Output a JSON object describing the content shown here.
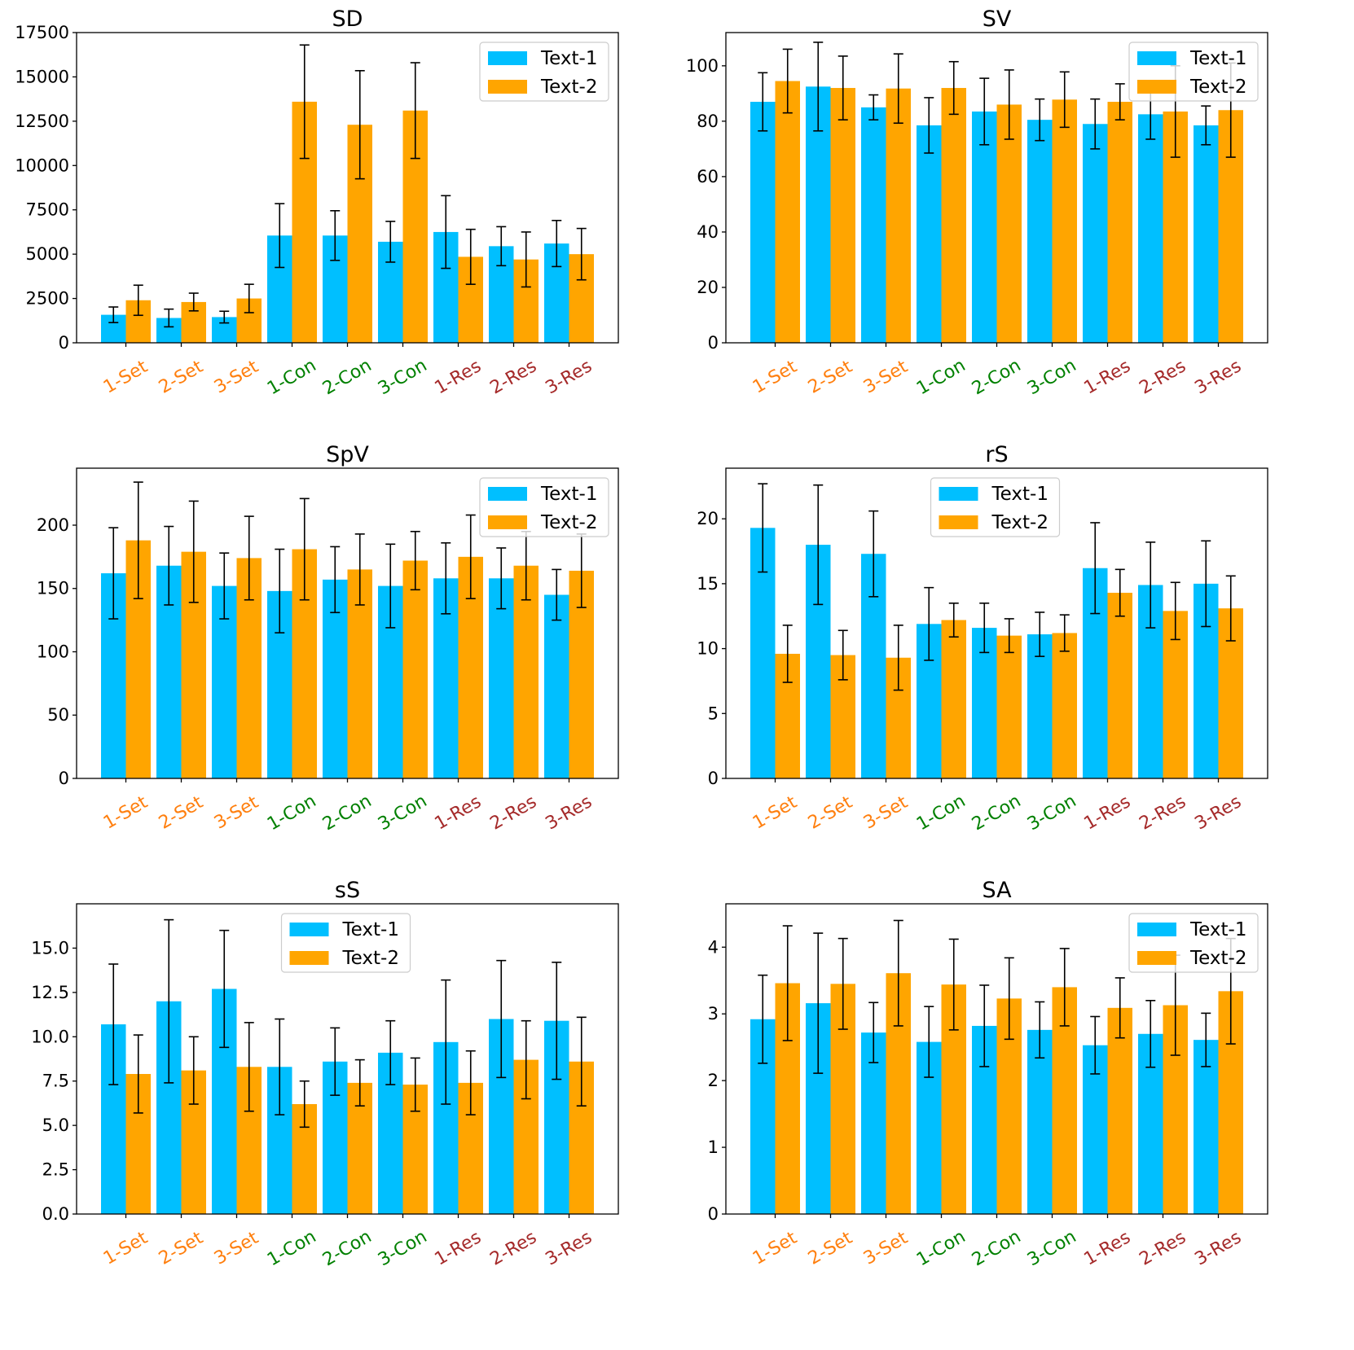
{
  "chart_data": [
    {
      "type": "bar",
      "title": "SD",
      "categories": [
        "1-Set",
        "2-Set",
        "3-Set",
        "1-Con",
        "2-Con",
        "3-Con",
        "1-Res",
        "2-Res",
        "3-Res"
      ],
      "series": [
        {
          "name": "Text-1",
          "values": [
            1580,
            1400,
            1450,
            6050,
            6050,
            5700,
            6250,
            5450,
            5600
          ],
          "errors": [
            440,
            500,
            330,
            1800,
            1400,
            1150,
            2050,
            1100,
            1300
          ]
        },
        {
          "name": "Text-2",
          "values": [
            2400,
            2300,
            2500,
            13600,
            12300,
            13100,
            4850,
            4700,
            5000
          ],
          "errors": [
            850,
            500,
            800,
            3200,
            3050,
            2700,
            1550,
            1550,
            1450
          ]
        }
      ],
      "ylim": [
        0,
        17500
      ],
      "yticks": [
        0,
        2500,
        5000,
        7500,
        10000,
        12500,
        15000,
        17500
      ],
      "legend": "top-right"
    },
    {
      "type": "bar",
      "title": "SV",
      "categories": [
        "1-Set",
        "2-Set",
        "3-Set",
        "1-Con",
        "2-Con",
        "3-Con",
        "1-Res",
        "2-Res",
        "3-Res"
      ],
      "series": [
        {
          "name": "Text-1",
          "values": [
            87,
            92.5,
            85,
            78.5,
            83.5,
            80.5,
            79,
            82.5,
            78.5
          ],
          "errors": [
            10.5,
            16,
            4.5,
            10,
            12,
            7.5,
            9,
            9,
            7
          ]
        },
        {
          "name": "Text-2",
          "values": [
            94.5,
            92,
            91.8,
            92,
            86,
            87.8,
            87,
            83.5,
            84
          ],
          "errors": [
            11.5,
            11.5,
            12.5,
            9.5,
            12.5,
            10,
            6.5,
            16.5,
            17
          ]
        }
      ],
      "ylim": [
        0,
        112
      ],
      "yticks": [
        0,
        20,
        40,
        60,
        80,
        100
      ],
      "legend": "top-right"
    },
    {
      "type": "bar",
      "title": "SpV",
      "categories": [
        "1-Set",
        "2-Set",
        "3-Set",
        "1-Con",
        "2-Con",
        "3-Con",
        "1-Res",
        "2-Res",
        "3-Res"
      ],
      "series": [
        {
          "name": "Text-1",
          "values": [
            162,
            168,
            152,
            148,
            157,
            152,
            158,
            158,
            145
          ],
          "errors": [
            36,
            31,
            26,
            33,
            26,
            33,
            28,
            24,
            20
          ]
        },
        {
          "name": "Text-2",
          "values": [
            188,
            179,
            174,
            181,
            165,
            172,
            175,
            168,
            164
          ],
          "errors": [
            46,
            40,
            33,
            40,
            28,
            23,
            33,
            27,
            29
          ]
        }
      ],
      "ylim": [
        0,
        245
      ],
      "yticks": [
        0,
        50,
        100,
        150,
        200
      ],
      "legend": "top-right"
    },
    {
      "type": "bar",
      "title": "rS",
      "categories": [
        "1-Set",
        "2-Set",
        "3-Set",
        "1-Con",
        "2-Con",
        "3-Con",
        "1-Res",
        "2-Res",
        "3-Res"
      ],
      "series": [
        {
          "name": "Text-1",
          "values": [
            19.3,
            18,
            17.3,
            11.9,
            11.6,
            11.1,
            16.2,
            14.9,
            15
          ],
          "errors": [
            3.4,
            4.6,
            3.3,
            2.8,
            1.9,
            1.7,
            3.5,
            3.3,
            3.3
          ]
        },
        {
          "name": "Text-2",
          "values": [
            9.6,
            9.5,
            9.3,
            12.2,
            11,
            11.2,
            14.3,
            12.9,
            13.1
          ],
          "errors": [
            2.2,
            1.9,
            2.5,
            1.3,
            1.3,
            1.4,
            1.8,
            2.2,
            2.5
          ]
        }
      ],
      "ylim": [
        0,
        23.9
      ],
      "yticks": [
        0,
        5,
        10,
        15,
        20
      ],
      "legend": "top-center"
    },
    {
      "type": "bar",
      "title": "sS",
      "categories": [
        "1-Set",
        "2-Set",
        "3-Set",
        "1-Con",
        "2-Con",
        "3-Con",
        "1-Res",
        "2-Res",
        "3-Res"
      ],
      "series": [
        {
          "name": "Text-1",
          "values": [
            10.7,
            12,
            12.7,
            8.3,
            8.6,
            9.1,
            9.7,
            11,
            10.9
          ],
          "errors": [
            3.4,
            4.6,
            3.3,
            2.7,
            1.9,
            1.8,
            3.5,
            3.3,
            3.3
          ]
        },
        {
          "name": "Text-2",
          "values": [
            7.9,
            8.1,
            8.3,
            6.2,
            7.4,
            7.3,
            7.4,
            8.7,
            8.6
          ],
          "errors": [
            2.2,
            1.9,
            2.5,
            1.3,
            1.3,
            1.5,
            1.8,
            2.2,
            2.5
          ]
        }
      ],
      "ylim": [
        0,
        17.5
      ],
      "yticks": [
        0,
        2.5,
        5,
        7.5,
        10,
        12.5,
        15
      ],
      "legend": "top-center"
    },
    {
      "type": "bar",
      "title": "SA",
      "categories": [
        "1-Set",
        "2-Set",
        "3-Set",
        "1-Con",
        "2-Con",
        "3-Con",
        "1-Res",
        "2-Res",
        "3-Res"
      ],
      "series": [
        {
          "name": "Text-1",
          "values": [
            2.92,
            3.16,
            2.72,
            2.58,
            2.82,
            2.76,
            2.53,
            2.7,
            2.61
          ],
          "errors": [
            0.66,
            1.05,
            0.45,
            0.53,
            0.61,
            0.42,
            0.43,
            0.5,
            0.4
          ]
        },
        {
          "name": "Text-2",
          "values": [
            3.46,
            3.45,
            3.61,
            3.44,
            3.23,
            3.4,
            3.09,
            3.13,
            3.34
          ],
          "errors": [
            0.86,
            0.68,
            0.79,
            0.68,
            0.61,
            0.58,
            0.45,
            0.75,
            0.79
          ]
        }
      ],
      "ylim": [
        0,
        4.65
      ],
      "yticks": [
        0,
        1,
        2,
        3,
        4
      ],
      "legend": "top-right"
    }
  ],
  "colors": {
    "text1": "#00bfff",
    "text2": "#ffa500",
    "set_label": "#ff7f0e",
    "con_label": "#008000",
    "res_label": "#a52a2a"
  }
}
